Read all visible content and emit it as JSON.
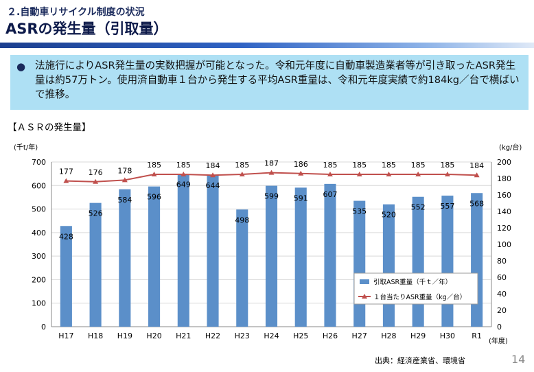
{
  "header": {
    "subtitle": "２.自動車リサイクル制度の状況",
    "title": "ASRの発生量（引取量）"
  },
  "bullet": {
    "text": "法施行によりASR発生量の実数把握が可能となった。令和元年度に自動車製造業者等が引き取ったASR発生量は約57万トン。使用済自動車１台から発生する平均ASR重量は、令和元年度実績で約184kg／台で横ばいで推移。"
  },
  "section_label": "【ＡＳＲの発生量】",
  "footer": {
    "source": "出典：経済産業省、環境省",
    "page": "14"
  },
  "colors": {
    "bar": "#5b8fc9",
    "line": "#c0504d",
    "accent": "#1c3f8f",
    "bullet_bg": "#aee0f4"
  },
  "chart_data": {
    "type": "bar",
    "categories": [
      "H17",
      "H18",
      "H19",
      "H20",
      "H21",
      "H22",
      "H23",
      "H24",
      "H25",
      "H26",
      "H27",
      "H28",
      "H29",
      "H30",
      "R1"
    ],
    "series": [
      {
        "name": "引取ASR重量（千ｔ／年）",
        "type": "bar",
        "axis": "left",
        "values": [
          428,
          526,
          584,
          596,
          649,
          644,
          498,
          599,
          591,
          607,
          535,
          520,
          552,
          557,
          568
        ]
      },
      {
        "name": "１台当たりASR重量（kg／台）",
        "type": "line",
        "axis": "right",
        "values": [
          177,
          176,
          178,
          185,
          185,
          184,
          185,
          187,
          186,
          185,
          185,
          185,
          185,
          185,
          184
        ]
      }
    ],
    "ylabel": "(千t/年)",
    "y2label": "(kg/台)",
    "xlabel": "(年度)",
    "ylim": [
      0,
      700
    ],
    "yticks": [
      0,
      100,
      200,
      300,
      400,
      500,
      600,
      700
    ],
    "y2lim": [
      0,
      200
    ],
    "y2ticks": [
      0,
      20,
      40,
      60,
      80,
      100,
      120,
      140,
      160,
      180,
      200
    ],
    "grid": true,
    "legend_position": "bottom-right"
  }
}
